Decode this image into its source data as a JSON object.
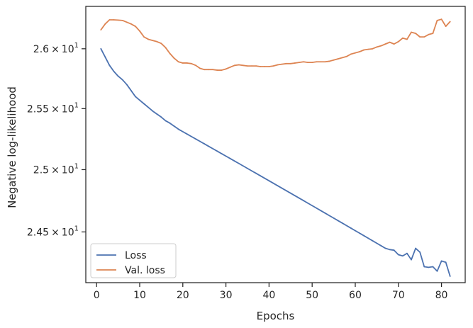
{
  "chart_data": {
    "type": "line",
    "xlabel": "Epochs",
    "ylabel": "Negative log-likelihood",
    "xlim": [
      -2.5,
      85.5
    ],
    "ylim": [
      24.1,
      26.36
    ],
    "yscale": "log",
    "grid": false,
    "legend_position": "lower-left",
    "x_ticks": [
      {
        "value": 0,
        "label": "0"
      },
      {
        "value": 10,
        "label": "10"
      },
      {
        "value": 20,
        "label": "20"
      },
      {
        "value": 30,
        "label": "30"
      },
      {
        "value": 40,
        "label": "40"
      },
      {
        "value": 50,
        "label": "50"
      },
      {
        "value": 60,
        "label": "60"
      },
      {
        "value": 70,
        "label": "70"
      },
      {
        "value": 80,
        "label": "80"
      }
    ],
    "y_ticks": [
      {
        "value": 24.5,
        "mantissa": "2.45",
        "times": "×",
        "base": "10",
        "exp": "1"
      },
      {
        "value": 25.0,
        "mantissa": "2.5",
        "times": "×",
        "base": "10",
        "exp": "1"
      },
      {
        "value": 25.5,
        "mantissa": "2.55",
        "times": "×",
        "base": "10",
        "exp": "1"
      },
      {
        "value": 26.0,
        "mantissa": "2.6",
        "times": "×",
        "base": "10",
        "exp": "1"
      }
    ],
    "series": [
      {
        "name": "Loss",
        "color": "#4c72b0",
        "x": [
          1,
          2,
          3,
          4,
          5,
          6,
          7,
          8,
          9,
          10,
          11,
          12,
          13,
          14,
          15,
          16,
          17,
          18,
          19,
          20,
          21,
          22,
          23,
          24,
          25,
          26,
          27,
          28,
          29,
          30,
          31,
          32,
          33,
          34,
          35,
          36,
          37,
          38,
          39,
          40,
          41,
          42,
          43,
          44,
          45,
          46,
          47,
          48,
          49,
          50,
          51,
          52,
          53,
          54,
          55,
          56,
          57,
          58,
          59,
          60,
          61,
          62,
          63,
          64,
          65,
          66,
          67,
          68,
          69,
          70,
          71,
          72,
          73,
          74,
          75,
          76,
          77,
          78,
          79,
          80,
          81,
          82
        ],
        "values": [
          26.0,
          25.93,
          25.86,
          25.81,
          25.77,
          25.74,
          25.7,
          25.65,
          25.6,
          25.57,
          25.54,
          25.51,
          25.48,
          25.455,
          25.43,
          25.4,
          25.38,
          25.355,
          25.33,
          25.31,
          25.29,
          25.27,
          25.25,
          25.23,
          25.21,
          25.19,
          25.17,
          25.15,
          25.13,
          25.11,
          25.09,
          25.07,
          25.05,
          25.03,
          25.01,
          24.99,
          24.97,
          24.95,
          24.93,
          24.91,
          24.89,
          24.87,
          24.85,
          24.83,
          24.81,
          24.79,
          24.77,
          24.75,
          24.73,
          24.71,
          24.69,
          24.67,
          24.65,
          24.63,
          24.61,
          24.59,
          24.57,
          24.55,
          24.53,
          24.51,
          24.49,
          24.47,
          24.45,
          24.43,
          24.41,
          24.39,
          24.37,
          24.36,
          24.355,
          24.32,
          24.31,
          24.33,
          24.28,
          24.37,
          24.34,
          24.225,
          24.22,
          24.225,
          24.19,
          24.27,
          24.26,
          24.15
        ]
      },
      {
        "name": "Val. loss",
        "color": "#dd8452",
        "x": [
          1,
          2,
          3,
          4,
          5,
          6,
          7,
          8,
          9,
          10,
          11,
          12,
          13,
          14,
          15,
          16,
          17,
          18,
          19,
          20,
          21,
          22,
          23,
          24,
          25,
          26,
          27,
          28,
          29,
          30,
          31,
          32,
          33,
          34,
          35,
          36,
          37,
          38,
          39,
          40,
          41,
          42,
          43,
          44,
          45,
          46,
          47,
          48,
          49,
          50,
          51,
          52,
          53,
          54,
          55,
          56,
          57,
          58,
          59,
          60,
          61,
          62,
          63,
          64,
          65,
          66,
          67,
          68,
          69,
          70,
          71,
          72,
          73,
          74,
          75,
          76,
          77,
          78,
          79,
          80,
          81,
          82
        ],
        "values": [
          26.16,
          26.21,
          26.245,
          26.245,
          26.243,
          26.24,
          26.225,
          26.21,
          26.19,
          26.15,
          26.1,
          26.08,
          26.07,
          26.06,
          26.045,
          26.01,
          25.96,
          25.92,
          25.89,
          25.88,
          25.88,
          25.875,
          25.86,
          25.835,
          25.825,
          25.825,
          25.825,
          25.82,
          25.82,
          25.83,
          25.845,
          25.86,
          25.865,
          25.86,
          25.855,
          25.855,
          25.855,
          25.85,
          25.85,
          25.85,
          25.855,
          25.865,
          25.87,
          25.875,
          25.875,
          25.88,
          25.885,
          25.89,
          25.885,
          25.885,
          25.89,
          25.89,
          25.89,
          25.895,
          25.905,
          25.915,
          25.925,
          25.935,
          25.955,
          25.965,
          25.975,
          25.99,
          25.995,
          26.0,
          26.015,
          26.025,
          26.04,
          26.055,
          26.04,
          26.06,
          26.09,
          26.08,
          26.14,
          26.13,
          26.1,
          26.1,
          26.12,
          26.13,
          26.24,
          26.25,
          26.19,
          26.23
        ]
      }
    ]
  }
}
